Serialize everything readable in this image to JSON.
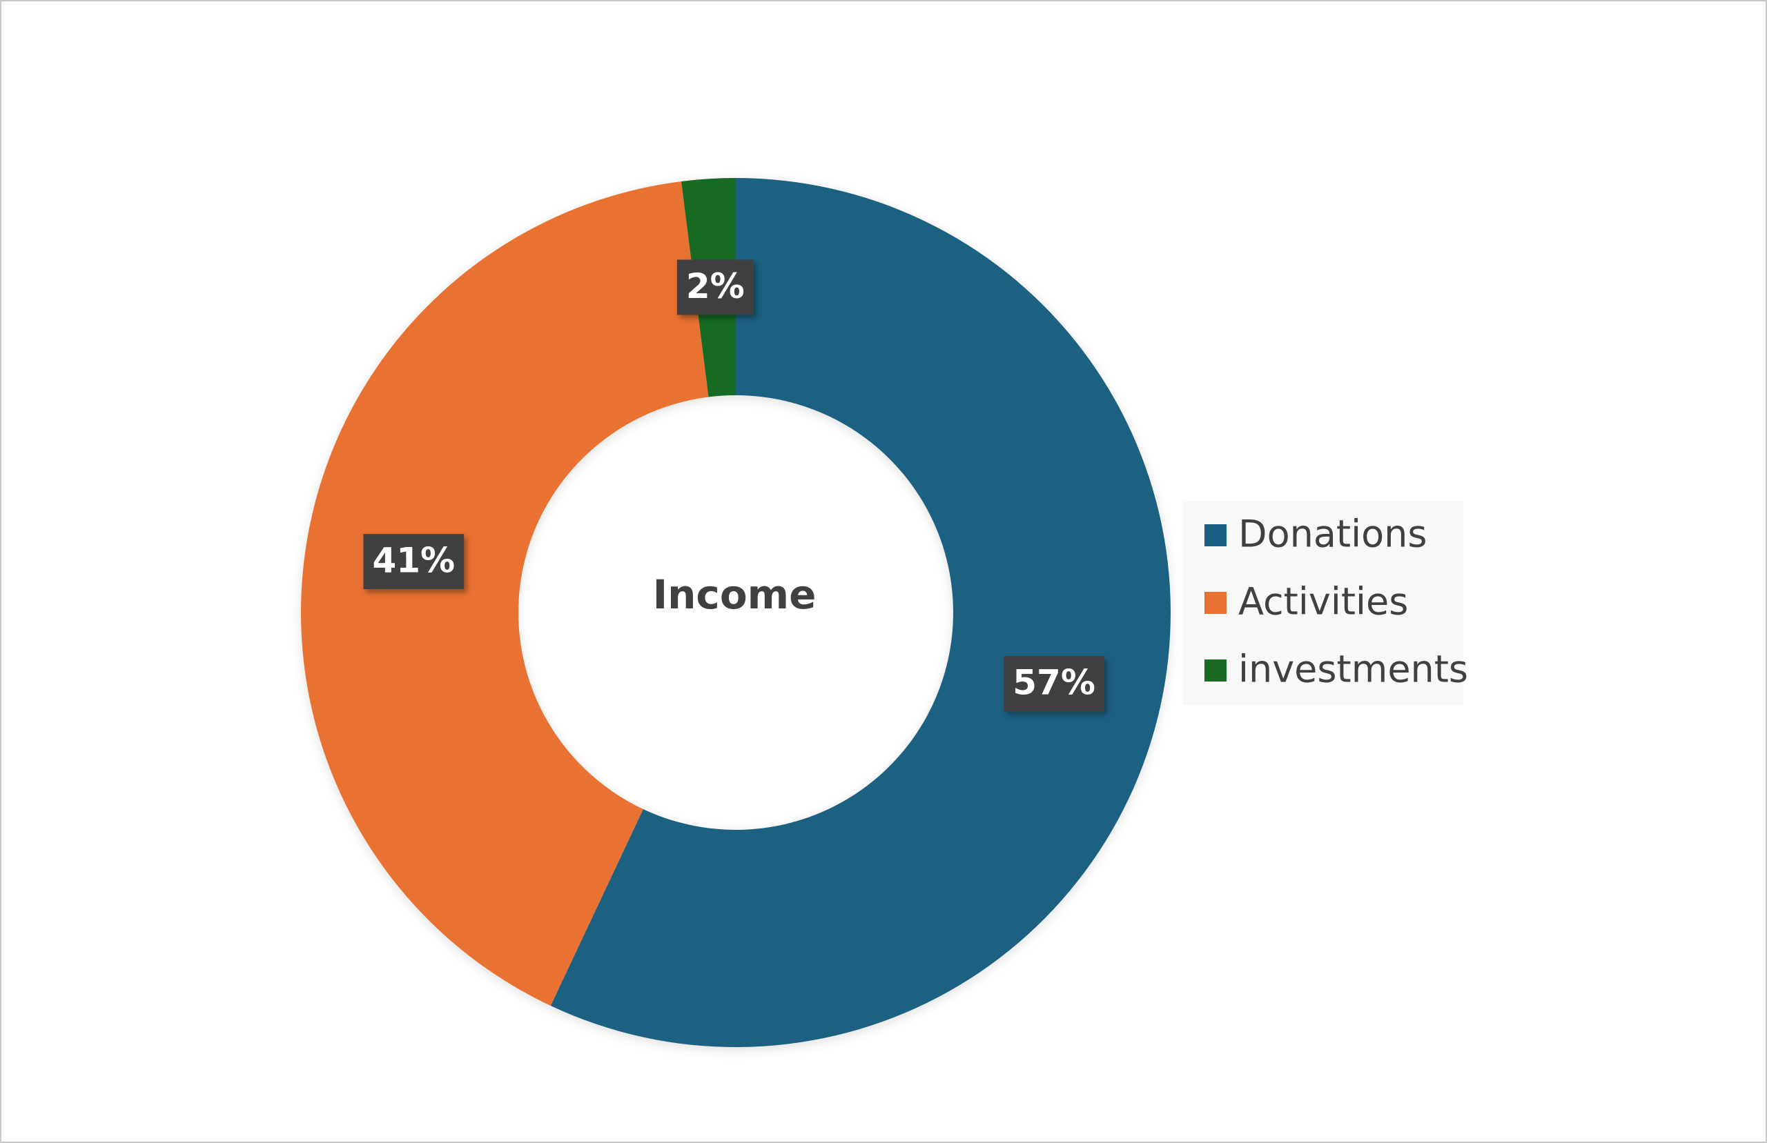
{
  "chart_data": {
    "type": "donut",
    "title": "Income",
    "categories": [
      "Donations",
      "Activities",
      "investments"
    ],
    "values": [
      57,
      41,
      2
    ],
    "value_labels": [
      "57%",
      "41%",
      "2%"
    ],
    "colors": [
      "#1a6082",
      "#e97132",
      "#196b24"
    ],
    "legend": "right"
  }
}
